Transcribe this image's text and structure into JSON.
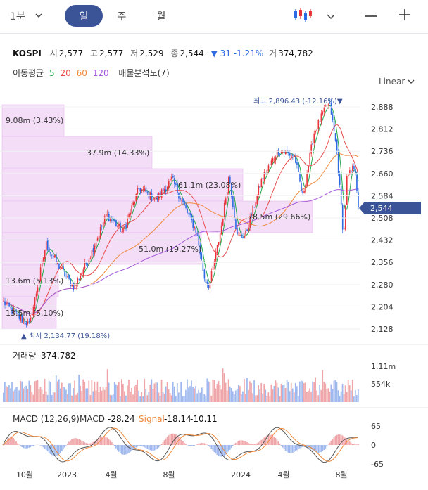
{
  "toolbar": {
    "period": "1분",
    "tabs": [
      "일",
      "주",
      "월"
    ],
    "active_tab": "일"
  },
  "quote": {
    "symbol": "KOSPI",
    "open_label": "시",
    "open": "2,577",
    "high_label": "고",
    "high": "2,577",
    "low_label": "저",
    "low": "2,529",
    "close_label": "종",
    "close": "2,544",
    "change": "▼ 31",
    "change_pct": "-1.21%",
    "volume_label": "거",
    "volume": "374,782"
  },
  "indicators": {
    "ma_label": "이동평균",
    "ma_periods": [
      "5",
      "20",
      "60",
      "120"
    ],
    "vp_label": "매물분석도(7)",
    "scale": "Linear"
  },
  "colors": {
    "accent": "#3b5498",
    "up": "#e8363c",
    "down": "#2d6ae3",
    "ma5": "#20a84a",
    "ma20": "#e94a4a",
    "ma60": "#f08a3c",
    "ma120": "#a256d8",
    "vp_fill": "#f3ddf7",
    "current_price_tag": "#3b5498",
    "signal": "#f08a3c"
  },
  "price_axis": [
    "2,888",
    "2,812",
    "2,736",
    "2,660",
    "2,584",
    "2,508",
    "2,432",
    "2,356",
    "2,280",
    "2,204",
    "2,128"
  ],
  "current_price": "2,544",
  "annotations": {
    "high": "최고 2,896.43 (-12.16%)▼",
    "low": "▲ 최저 2,134.77 (19.18%)"
  },
  "volume_profile": [
    "9.08m (3.43%)",
    "37.9m (14.33%)",
    "61.1m (23.08%)",
    "78.5m (29.66%)",
    "51.0m (19.27%)",
    "13.6m (5.13%)",
    "13.5m (5.10%)"
  ],
  "volume_panel": {
    "label": "거래량",
    "value": "374,782",
    "axis": [
      "1.11m",
      "554k"
    ]
  },
  "macd_panel": {
    "label": "MACD (12,26,9)",
    "macd_label": "MACD",
    "macd_value": "-28.24",
    "signal_label": "Signal",
    "signal_value": "-18.14",
    "hist_value": "-10.11",
    "axis": [
      "65",
      "0",
      "-65"
    ]
  },
  "x_axis": [
    "10월",
    "2023",
    "4월",
    "8월",
    "2024",
    "4월",
    "8월"
  ],
  "chart_data": {
    "type": "candlestick",
    "ylim": [
      2100,
      2910
    ],
    "price_path": [
      [
        2022.62,
        2220
      ],
      [
        2022.72,
        2165
      ],
      [
        2022.78,
        2140
      ],
      [
        2022.88,
        2420
      ],
      [
        2022.95,
        2350
      ],
      [
        2023.05,
        2270
      ],
      [
        2023.15,
        2380
      ],
      [
        2023.25,
        2520
      ],
      [
        2023.35,
        2460
      ],
      [
        2023.45,
        2610
      ],
      [
        2023.55,
        2570
      ],
      [
        2023.65,
        2640
      ],
      [
        2023.72,
        2555
      ],
      [
        2023.8,
        2460
      ],
      [
        2023.85,
        2300
      ],
      [
        2023.88,
        2277
      ],
      [
        2023.95,
        2470
      ],
      [
        2024.0,
        2655
      ],
      [
        2024.05,
        2440
      ],
      [
        2024.1,
        2450
      ],
      [
        2024.2,
        2640
      ],
      [
        2024.3,
        2740
      ],
      [
        2024.4,
        2720
      ],
      [
        2024.45,
        2580
      ],
      [
        2024.52,
        2800
      ],
      [
        2024.6,
        2895
      ],
      [
        2024.62,
        2885
      ],
      [
        2024.66,
        2730
      ],
      [
        2024.7,
        2440
      ],
      [
        2024.72,
        2640
      ],
      [
        2024.77,
        2690
      ],
      [
        2024.79,
        2544
      ]
    ]
  }
}
